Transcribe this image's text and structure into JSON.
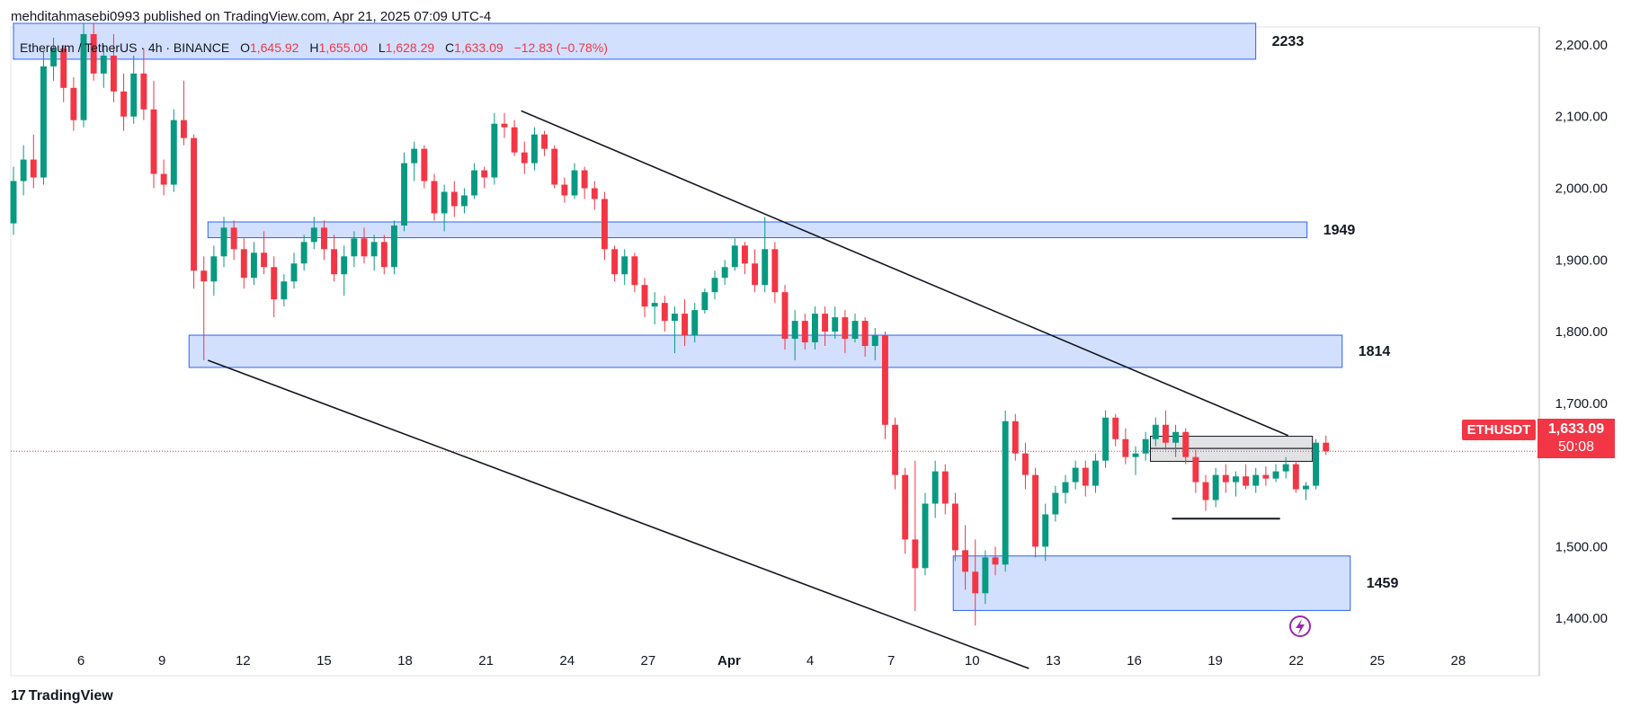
{
  "header": {
    "publisher": "mehditahmasebi0993 published on TradingView.com, Apr 21, 2025 07:09 UTC-4",
    "symbol": "Ethereum / TetherUS · 4h · BINANCE",
    "ohlc": {
      "o_label": "O",
      "o": "1,645.92",
      "h_label": "H",
      "h": "1,655.00",
      "l_label": "L",
      "l": "1,628.29",
      "c_label": "C",
      "c": "1,633.09",
      "change": "−12.83 (−0.78%)"
    }
  },
  "price_tag": {
    "symbol": "ETHUSDT",
    "price": "1,633.09",
    "countdown": "50:08"
  },
  "footer": {
    "brand_mark": "17",
    "brand": "TradingView"
  },
  "colors": {
    "up": "#089981",
    "down": "#f23645",
    "zone_fill": "#d3e0fd",
    "zone_border": "#2962ff",
    "trendline": "#131722"
  },
  "chart_data": {
    "type": "candlestick",
    "x_ticks": [
      "6",
      "9",
      "12",
      "15",
      "18",
      "21",
      "24",
      "27",
      "Apr",
      "4",
      "7",
      "10",
      "13",
      "16",
      "19",
      "22",
      "25",
      "28"
    ],
    "x_tick_positions": [
      6,
      9,
      12,
      15,
      18,
      21,
      24,
      27,
      30,
      33,
      36,
      39,
      42,
      45,
      48,
      51,
      54,
      57
    ],
    "y_ticks": [
      "2,200.00",
      "2,100.00",
      "2,000.00",
      "1,900.00",
      "1,800.00",
      "1,700.00",
      "1,500.00",
      "1,400.00"
    ],
    "y_tick_values": [
      2200,
      2100,
      2000,
      1900,
      1800,
      1700,
      1500,
      1400
    ],
    "xlim": [
      3.4,
      60
    ],
    "ylim": [
      1320,
      2225
    ],
    "last_price": 1633.09,
    "zones": [
      {
        "label": "2233",
        "x0": 3.5,
        "x1": 49.5,
        "y0": 2180,
        "y1": 2230
      },
      {
        "label": "1949",
        "x0": 10.7,
        "x1": 51.4,
        "y0": 1931,
        "y1": 1953
      },
      {
        "label": "1814",
        "x0": 10.0,
        "x1": 52.7,
        "y0": 1750,
        "y1": 1795
      },
      {
        "label": "1459",
        "x0": 38.3,
        "x1": 53.0,
        "y0": 1411,
        "y1": 1487
      }
    ],
    "consolidation_boxes": [
      {
        "x0": 45.6,
        "x1": 51.6,
        "y0": 1637,
        "y1": 1654
      },
      {
        "x0": 45.6,
        "x1": 51.6,
        "y0": 1619,
        "y1": 1637
      }
    ],
    "trendlines": [
      {
        "x0": 22.3,
        "y0": 2108,
        "x1": 50.7,
        "y1": 1655
      },
      {
        "x0": 10.7,
        "y0": 1760,
        "x1": 41.1,
        "y1": 1330
      }
    ],
    "support_line": {
      "x0": 46.4,
      "x1": 50.4,
      "y": 1539
    },
    "candles": [
      [
        1951,
        2030,
        1935,
        2010
      ],
      [
        2010,
        2060,
        1990,
        2040
      ],
      [
        2040,
        2075,
        2000,
        2015
      ],
      [
        2015,
        2190,
        2005,
        2170
      ],
      [
        2170,
        2210,
        2150,
        2195
      ],
      [
        2195,
        2200,
        2120,
        2140
      ],
      [
        2140,
        2155,
        2080,
        2095
      ],
      [
        2095,
        2230,
        2085,
        2215
      ],
      [
        2215,
        2230,
        2150,
        2160
      ],
      [
        2160,
        2200,
        2140,
        2185
      ],
      [
        2185,
        2215,
        2120,
        2135
      ],
      [
        2135,
        2160,
        2080,
        2100
      ],
      [
        2100,
        2185,
        2090,
        2160
      ],
      [
        2160,
        2195,
        2095,
        2110
      ],
      [
        2110,
        2150,
        2000,
        2020
      ],
      [
        2020,
        2040,
        1990,
        2005
      ],
      [
        2005,
        2110,
        1995,
        2095
      ],
      [
        2095,
        2150,
        2060,
        2070
      ],
      [
        2070,
        2075,
        1860,
        1885
      ],
      [
        1885,
        1905,
        1760,
        1870
      ],
      [
        1870,
        1920,
        1850,
        1905
      ],
      [
        1905,
        1960,
        1890,
        1945
      ],
      [
        1945,
        1955,
        1900,
        1915
      ],
      [
        1915,
        1930,
        1860,
        1875
      ],
      [
        1875,
        1925,
        1865,
        1910
      ],
      [
        1910,
        1940,
        1880,
        1890
      ],
      [
        1890,
        1905,
        1820,
        1845
      ],
      [
        1845,
        1880,
        1835,
        1870
      ],
      [
        1870,
        1910,
        1860,
        1895
      ],
      [
        1895,
        1935,
        1885,
        1925
      ],
      [
        1925,
        1960,
        1915,
        1945
      ],
      [
        1945,
        1955,
        1900,
        1915
      ],
      [
        1915,
        1935,
        1870,
        1880
      ],
      [
        1880,
        1920,
        1850,
        1905
      ],
      [
        1905,
        1940,
        1890,
        1930
      ],
      [
        1930,
        1945,
        1895,
        1905
      ],
      [
        1905,
        1935,
        1885,
        1925
      ],
      [
        1925,
        1935,
        1880,
        1890
      ],
      [
        1890,
        1955,
        1880,
        1948
      ],
      [
        1948,
        2050,
        1940,
        2035
      ],
      [
        2035,
        2065,
        2010,
        2055
      ],
      [
        2055,
        2060,
        2000,
        2010
      ],
      [
        2010,
        2020,
        1955,
        1965
      ],
      [
        1965,
        2005,
        1940,
        1995
      ],
      [
        1995,
        2010,
        1960,
        1975
      ],
      [
        1975,
        2000,
        1965,
        1990
      ],
      [
        1990,
        2035,
        1985,
        2025
      ],
      [
        2025,
        2030,
        2000,
        2015
      ],
      [
        2015,
        2105,
        2005,
        2090
      ],
      [
        2090,
        2105,
        2070,
        2085
      ],
      [
        2085,
        2095,
        2045,
        2050
      ],
      [
        2050,
        2065,
        2020,
        2035
      ],
      [
        2035,
        2085,
        2025,
        2075
      ],
      [
        2075,
        2080,
        2045,
        2055
      ],
      [
        2055,
        2060,
        2000,
        2005
      ],
      [
        2005,
        2015,
        1980,
        1990
      ],
      [
        1990,
        2035,
        1985,
        2025
      ],
      [
        2025,
        2030,
        1985,
        2000
      ],
      [
        2000,
        2010,
        1970,
        1985
      ],
      [
        1985,
        1995,
        1900,
        1915
      ],
      [
        1915,
        1920,
        1870,
        1880
      ],
      [
        1880,
        1915,
        1865,
        1905
      ],
      [
        1905,
        1910,
        1855,
        1865
      ],
      [
        1865,
        1875,
        1820,
        1835
      ],
      [
        1835,
        1855,
        1810,
        1840
      ],
      [
        1840,
        1850,
        1800,
        1815
      ],
      [
        1815,
        1835,
        1770,
        1825
      ],
      [
        1825,
        1845,
        1780,
        1795
      ],
      [
        1795,
        1840,
        1785,
        1830
      ],
      [
        1830,
        1860,
        1825,
        1855
      ],
      [
        1855,
        1885,
        1845,
        1875
      ],
      [
        1875,
        1900,
        1865,
        1890
      ],
      [
        1890,
        1930,
        1885,
        1920
      ],
      [
        1920,
        1925,
        1880,
        1895
      ],
      [
        1895,
        1915,
        1855,
        1865
      ],
      [
        1865,
        1960,
        1855,
        1915
      ],
      [
        1915,
        1925,
        1840,
        1855
      ],
      [
        1855,
        1865,
        1775,
        1790
      ],
      [
        1790,
        1830,
        1760,
        1815
      ],
      [
        1815,
        1825,
        1775,
        1785
      ],
      [
        1785,
        1835,
        1775,
        1825
      ],
      [
        1825,
        1835,
        1780,
        1800
      ],
      [
        1800,
        1835,
        1790,
        1820
      ],
      [
        1820,
        1830,
        1770,
        1790
      ],
      [
        1790,
        1825,
        1785,
        1815
      ],
      [
        1815,
        1820,
        1765,
        1780
      ],
      [
        1780,
        1805,
        1760,
        1795
      ],
      [
        1795,
        1800,
        1650,
        1670
      ],
      [
        1670,
        1680,
        1580,
        1600
      ],
      [
        1600,
        1610,
        1490,
        1510
      ],
      [
        1510,
        1620,
        1410,
        1470
      ],
      [
        1470,
        1575,
        1460,
        1560
      ],
      [
        1560,
        1620,
        1540,
        1605
      ],
      [
        1605,
        1615,
        1545,
        1560
      ],
      [
        1560,
        1575,
        1480,
        1495
      ],
      [
        1495,
        1530,
        1440,
        1465
      ],
      [
        1465,
        1510,
        1390,
        1435
      ],
      [
        1435,
        1495,
        1420,
        1485
      ],
      [
        1485,
        1500,
        1460,
        1475
      ],
      [
        1475,
        1690,
        1465,
        1675
      ],
      [
        1675,
        1685,
        1620,
        1630
      ],
      [
        1630,
        1645,
        1580,
        1600
      ],
      [
        1600,
        1610,
        1485,
        1500
      ],
      [
        1500,
        1560,
        1480,
        1545
      ],
      [
        1545,
        1585,
        1535,
        1575
      ],
      [
        1575,
        1600,
        1560,
        1590
      ],
      [
        1590,
        1620,
        1580,
        1610
      ],
      [
        1610,
        1620,
        1570,
        1585
      ],
      [
        1585,
        1630,
        1575,
        1620
      ],
      [
        1620,
        1690,
        1610,
        1680
      ],
      [
        1680,
        1685,
        1640,
        1650
      ],
      [
        1650,
        1665,
        1615,
        1625
      ],
      [
        1625,
        1640,
        1600,
        1630
      ],
      [
        1630,
        1660,
        1620,
        1650
      ],
      [
        1650,
        1680,
        1640,
        1670
      ],
      [
        1670,
        1690,
        1635,
        1645
      ],
      [
        1645,
        1670,
        1625,
        1660
      ],
      [
        1660,
        1665,
        1615,
        1625
      ],
      [
        1625,
        1635,
        1575,
        1590
      ],
      [
        1590,
        1600,
        1550,
        1565
      ],
      [
        1565,
        1610,
        1555,
        1600
      ],
      [
        1600,
        1615,
        1575,
        1590
      ],
      [
        1590,
        1605,
        1570,
        1598
      ],
      [
        1598,
        1615,
        1580,
        1585
      ],
      [
        1585,
        1610,
        1575,
        1600
      ],
      [
        1600,
        1612,
        1585,
        1595
      ],
      [
        1595,
        1615,
        1590,
        1605
      ],
      [
        1605,
        1625,
        1595,
        1615
      ],
      [
        1615,
        1620,
        1575,
        1580
      ],
      [
        1580,
        1590,
        1565,
        1585
      ],
      [
        1585,
        1650,
        1580,
        1645
      ],
      [
        1645,
        1655,
        1628,
        1633
      ]
    ]
  }
}
